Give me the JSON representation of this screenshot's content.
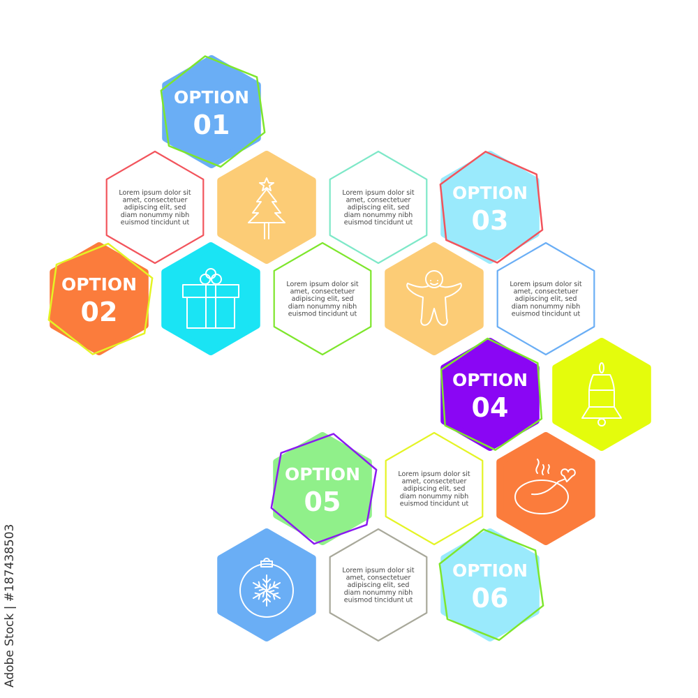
{
  "colors": {
    "blue": "#6aaef5",
    "yellow_orange": "#fccc76",
    "cyan": "#1ae4f4",
    "light_cyan": "#9aeafc",
    "orange": "#fb7c3c",
    "purple": "#8a06f4",
    "lime": "#e4fc0c",
    "light_green": "#90f08a",
    "text_gray": "#444444"
  },
  "options": [
    {
      "label": "OPTION",
      "number": "01",
      "fill": "#6aaef5",
      "outline": "#7ee62c"
    },
    {
      "label": "OPTION",
      "number": "02",
      "fill": "#fb7c3c",
      "outline": "#e4f424"
    },
    {
      "label": "OPTION",
      "number": "03",
      "fill": "#9aeafc",
      "outline": "#f2545c"
    },
    {
      "label": "OPTION",
      "number": "04",
      "fill": "#8a06f4",
      "outline": "#7ee62c"
    },
    {
      "label": "OPTION",
      "number": "05",
      "fill": "#90f08a",
      "outline": "#8a1af0"
    },
    {
      "label": "OPTION",
      "number": "06",
      "fill": "#9aeafc",
      "outline": "#7ee62c"
    }
  ],
  "text_blocks": [
    {
      "outline": "#f2545c",
      "lines": [
        "Lorem ipsum dolor sit",
        "amet, consectetuer",
        "adipiscing elit, sed",
        "diam nonummy nibh",
        "euismod tincidunt ut"
      ]
    },
    {
      "outline": "#7ee8c8",
      "lines": [
        "Lorem ipsum dolor sit",
        "amet, consectetuer",
        "adipiscing elit, sed",
        "diam nonummy nibh",
        "euismod tincidunt ut"
      ]
    },
    {
      "outline": "#7ee62c",
      "lines": [
        "Lorem ipsum dolor sit",
        "amet, consectetuer",
        "adipiscing elit, sed",
        "diam nonummy nibh",
        "euismod tincidunt ut"
      ]
    },
    {
      "outline": "#6aaef5",
      "lines": [
        "Lorem ipsum dolor sit",
        "amet, consectetuer",
        "adipiscing elit, sed",
        "diam nonummy nibh",
        "euismod tincidunt ut"
      ]
    },
    {
      "outline": "#e4f424",
      "lines": [
        "Lorem ipsum dolor sit",
        "amet, consectetuer",
        "adipiscing elit, sed",
        "diam nonummy nibh",
        "euismod tincidunt ut"
      ]
    },
    {
      "outline": "#a8a89a",
      "lines": [
        "Lorem ipsum dolor sit",
        "amet, consectetuer",
        "adipiscing elit, sed",
        "diam nonummy nibh",
        "euismod tincidunt ut"
      ]
    }
  ],
  "icons": [
    {
      "name": "christmas-tree-icon",
      "fill": "#fccc76"
    },
    {
      "name": "gift-box-icon",
      "fill": "#1ae4f4"
    },
    {
      "name": "gingerbread-man-icon",
      "fill": "#fccc76"
    },
    {
      "name": "bell-icon",
      "fill": "#e4fc0c"
    },
    {
      "name": "roast-chicken-icon",
      "fill": "#fb7c3c"
    },
    {
      "name": "snowflake-ornament-icon",
      "fill": "#6aaef5"
    }
  ],
  "watermark": "Adobe Stock | #187438503"
}
